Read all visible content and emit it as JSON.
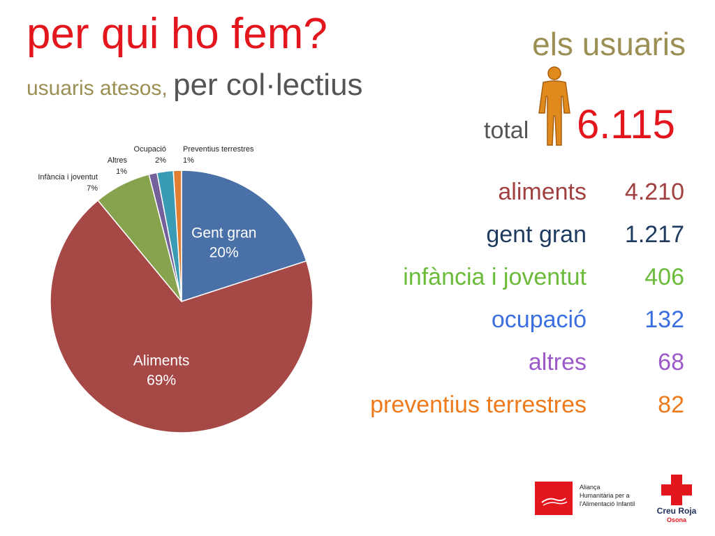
{
  "header": {
    "title": "per qui ho fem?",
    "subtitle_part1": "usuaris atesos, ",
    "subtitle_part2": "per col·lectius",
    "section_title": "els usuaris"
  },
  "total": {
    "label": "total",
    "value": "6.115",
    "icon": "person-icon"
  },
  "breakdown": [
    {
      "label": "aliments",
      "value": "4.210",
      "color": "#a04040"
    },
    {
      "label": "gent gran",
      "value": "1.217",
      "color": "#1f3a5f"
    },
    {
      "label": "infància i joventut",
      "value": "406",
      "color": "#6bbb3a"
    },
    {
      "label": "ocupació",
      "value": "132",
      "color": "#3b6fe0"
    },
    {
      "label": "altres",
      "value": "68",
      "color": "#9b59c9"
    },
    {
      "label": "preventius terrestres",
      "value": "82",
      "color": "#ee7a1c"
    }
  ],
  "chart_data": {
    "type": "pie",
    "start_angle_deg": 0,
    "slices": [
      {
        "name": "Gent gran",
        "value": 20,
        "percent_label": "20%",
        "color": "#4a70a8"
      },
      {
        "name": "Aliments",
        "value": 69,
        "percent_label": "69%",
        "color": "#a64845"
      },
      {
        "name": "Infància i joventut",
        "value": 7,
        "percent_label": "7%",
        "color": "#87a34d"
      },
      {
        "name": "Altres",
        "value": 1,
        "percent_label": "1%",
        "color": "#74609a"
      },
      {
        "name": "Ocupació",
        "value": 2,
        "percent_label": "2%",
        "color": "#3a9bb5"
      },
      {
        "name": "Preventius terrestres",
        "value": 1,
        "percent_label": "1%",
        "color": "#e07f33"
      }
    ],
    "label_placement": {
      "Gent gran": "inside",
      "Aliments": "inside",
      "Infància i joventut": "outside",
      "Altres": "outside",
      "Ocupació": "outside",
      "Preventius terrestres": "outside"
    }
  },
  "logos": {
    "alianca_lines": [
      "Aliança",
      "Humanitària per a",
      "l'Alimentació Infantil"
    ],
    "creu_roja_name": "Creu Roja",
    "creu_roja_sub": "Osona"
  }
}
